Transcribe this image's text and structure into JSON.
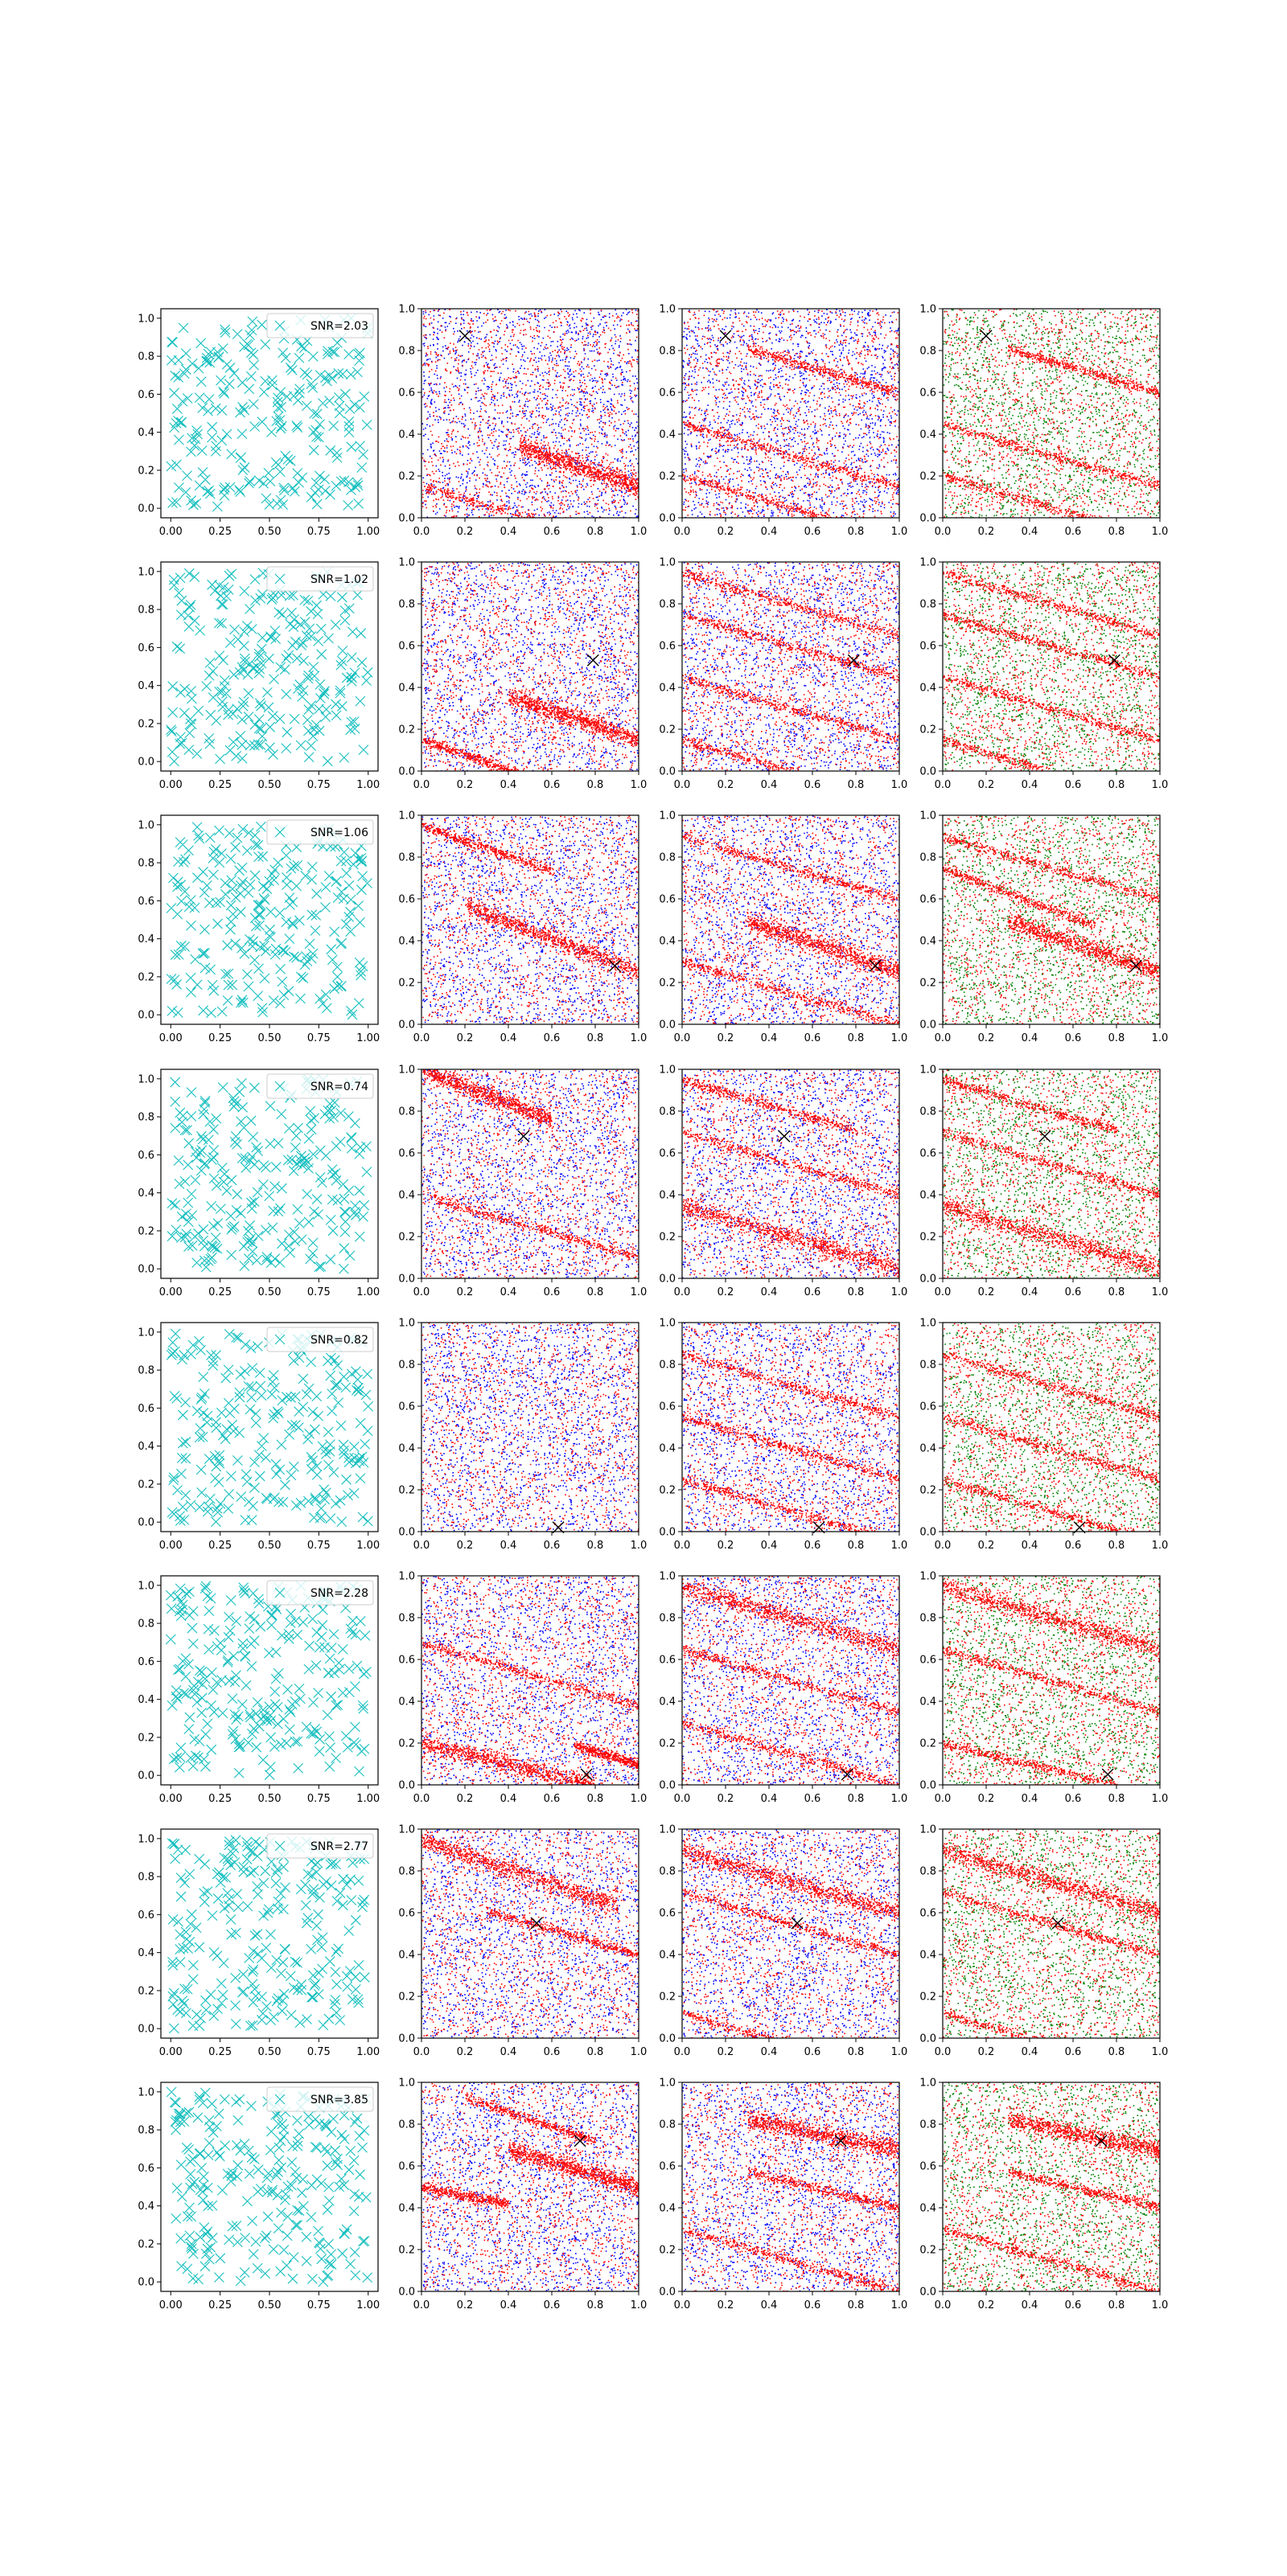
{
  "figure": {
    "grid": {
      "rows": 8,
      "cols": 4
    },
    "colors": {
      "marker": "#17bfbf",
      "blue": "#0000ff",
      "red": "#ff0000",
      "green": "#008000",
      "cross": "#000000",
      "axis": "#000000",
      "background": "#ffffff"
    },
    "icons": {
      "cross": "x-marker-icon"
    }
  },
  "chart_data": [
    {
      "row": 1,
      "panel": 1,
      "type": "scatter",
      "legend": "SNR=2.03",
      "marker": "x",
      "color": "#17bfbf",
      "n_points": 250,
      "xlim": [
        -0.05,
        1.05
      ],
      "ylim": [
        -0.05,
        1.05
      ],
      "xticks": [
        "0.00",
        "0.25",
        "0.50",
        "0.75",
        "1.00"
      ],
      "yticks": [
        "0.0",
        "0.2",
        "0.4",
        "0.6",
        "0.8",
        "1.0"
      ]
    },
    {
      "row": 1,
      "panel": 2,
      "type": "scatter",
      "colors": [
        "blue",
        "red"
      ],
      "cross": [
        0.2,
        0.87
      ],
      "bands": [
        {
          "slope": -0.35,
          "intercept": 0.5,
          "x0": 0.45,
          "x1": 1.0,
          "thick": true
        },
        {
          "slope": -0.3,
          "intercept": 0.15,
          "x0": 0.0,
          "x1": 1.0
        }
      ],
      "xlim": [
        0.0,
        1.0
      ],
      "ylim": [
        0.0,
        1.0
      ]
    },
    {
      "row": 1,
      "panel": 3,
      "type": "scatter",
      "colors": [
        "blue",
        "red"
      ],
      "cross": [
        0.2,
        0.87
      ],
      "bands": [
        {
          "slope": -0.3,
          "intercept": 0.45,
          "x0": 0.0,
          "x1": 1.0
        },
        {
          "slope": -0.3,
          "intercept": 0.2,
          "x0": 0.0,
          "x1": 1.0
        },
        {
          "slope": -0.3,
          "intercept": 0.9,
          "x0": 0.3,
          "x1": 1.0
        }
      ],
      "xlim": [
        0.0,
        1.0
      ],
      "ylim": [
        0.0,
        1.0
      ]
    },
    {
      "row": 1,
      "panel": 4,
      "type": "scatter",
      "colors": [
        "green",
        "red"
      ],
      "cross": [
        0.2,
        0.87
      ],
      "bands": [
        {
          "slope": -0.3,
          "intercept": 0.45,
          "x0": 0.0,
          "x1": 1.0
        },
        {
          "slope": -0.3,
          "intercept": 0.2,
          "x0": 0.0,
          "x1": 1.0
        },
        {
          "slope": -0.3,
          "intercept": 0.9,
          "x0": 0.3,
          "x1": 1.0
        }
      ],
      "xlim": [
        0.0,
        1.0
      ],
      "ylim": [
        0.0,
        1.0
      ]
    },
    {
      "row": 2,
      "panel": 1,
      "type": "scatter",
      "legend": "SNR=1.02",
      "marker": "x",
      "color": "#17bfbf",
      "n_points": 250,
      "xlim": [
        -0.05,
        1.05
      ],
      "ylim": [
        -0.05,
        1.05
      ],
      "xticks": [
        "0.00",
        "0.25",
        "0.50",
        "0.75",
        "1.00"
      ],
      "yticks": [
        "0.0",
        "0.2",
        "0.4",
        "0.6",
        "0.8",
        "1.0"
      ]
    },
    {
      "row": 2,
      "panel": 2,
      "type": "scatter",
      "colors": [
        "blue",
        "red"
      ],
      "cross": [
        0.79,
        0.53
      ],
      "bands": [
        {
          "slope": -0.35,
          "intercept": 0.5,
          "x0": 0.4,
          "x1": 1.0,
          "thick": true
        },
        {
          "slope": -0.35,
          "intercept": 0.15,
          "x0": 0.0,
          "x1": 0.5
        }
      ],
      "xlim": [
        0.0,
        1.0
      ],
      "ylim": [
        0.0,
        1.0
      ]
    },
    {
      "row": 2,
      "panel": 3,
      "type": "scatter",
      "colors": [
        "blue",
        "red"
      ],
      "cross": [
        0.79,
        0.53
      ],
      "bands": [
        {
          "slope": -0.3,
          "intercept": 0.75,
          "x0": 0.0,
          "x1": 1.0
        },
        {
          "slope": -0.3,
          "intercept": 0.45,
          "x0": 0.0,
          "x1": 1.0
        },
        {
          "slope": -0.3,
          "intercept": 0.95,
          "x0": 0.0,
          "x1": 1.0
        },
        {
          "slope": -0.3,
          "intercept": 0.15,
          "x0": 0.0,
          "x1": 1.0
        }
      ],
      "xlim": [
        0.0,
        1.0
      ],
      "ylim": [
        0.0,
        1.0
      ]
    },
    {
      "row": 2,
      "panel": 4,
      "type": "scatter",
      "colors": [
        "green",
        "red"
      ],
      "cross": [
        0.79,
        0.53
      ],
      "bands": [
        {
          "slope": -0.3,
          "intercept": 0.75,
          "x0": 0.0,
          "x1": 1.0
        },
        {
          "slope": -0.3,
          "intercept": 0.45,
          "x0": 0.0,
          "x1": 1.0
        },
        {
          "slope": -0.3,
          "intercept": 0.95,
          "x0": 0.0,
          "x1": 1.0
        },
        {
          "slope": -0.3,
          "intercept": 0.15,
          "x0": 0.0,
          "x1": 1.0
        }
      ],
      "xlim": [
        0.0,
        1.0
      ],
      "ylim": [
        0.0,
        1.0
      ]
    },
    {
      "row": 3,
      "panel": 1,
      "type": "scatter",
      "legend": "SNR=1.06",
      "marker": "x",
      "color": "#17bfbf",
      "n_points": 250,
      "xlim": [
        -0.05,
        1.05
      ],
      "ylim": [
        -0.05,
        1.05
      ],
      "xticks": [
        "0.00",
        "0.25",
        "0.50",
        "0.75",
        "1.00"
      ],
      "yticks": [
        "0.0",
        "0.2",
        "0.4",
        "0.6",
        "0.8",
        "1.0"
      ]
    },
    {
      "row": 3,
      "panel": 2,
      "type": "scatter",
      "colors": [
        "blue",
        "red"
      ],
      "cross": [
        0.89,
        0.28
      ],
      "bands": [
        {
          "slope": -0.4,
          "intercept": 0.65,
          "x0": 0.2,
          "x1": 1.0,
          "thick": true
        },
        {
          "slope": -0.35,
          "intercept": 0.95,
          "x0": 0.0,
          "x1": 0.6
        }
      ],
      "xlim": [
        0.0,
        1.0
      ],
      "ylim": [
        0.0,
        1.0
      ]
    },
    {
      "row": 3,
      "panel": 3,
      "type": "scatter",
      "colors": [
        "blue",
        "red"
      ],
      "cross": [
        0.89,
        0.28
      ],
      "bands": [
        {
          "slope": -0.35,
          "intercept": 0.6,
          "x0": 0.3,
          "x1": 1.0,
          "thick": true
        },
        {
          "slope": -0.3,
          "intercept": 0.9,
          "x0": 0.0,
          "x1": 1.0
        },
        {
          "slope": -0.3,
          "intercept": 0.3,
          "x0": 0.0,
          "x1": 1.0
        }
      ],
      "xlim": [
        0.0,
        1.0
      ],
      "ylim": [
        0.0,
        1.0
      ]
    },
    {
      "row": 3,
      "panel": 4,
      "type": "scatter",
      "colors": [
        "green",
        "red"
      ],
      "cross": [
        0.89,
        0.28
      ],
      "bands": [
        {
          "slope": -0.35,
          "intercept": 0.6,
          "x0": 0.3,
          "x1": 1.0,
          "thick": true
        },
        {
          "slope": -0.3,
          "intercept": 0.9,
          "x0": 0.0,
          "x1": 1.0
        },
        {
          "slope": -0.4,
          "intercept": 0.75,
          "x0": 0.0,
          "x1": 0.7
        }
      ],
      "xlim": [
        0.0,
        1.0
      ],
      "ylim": [
        0.0,
        1.0
      ]
    },
    {
      "row": 4,
      "panel": 1,
      "type": "scatter",
      "legend": "SNR=0.74",
      "marker": "x",
      "color": "#17bfbf",
      "n_points": 250,
      "xlim": [
        -0.05,
        1.05
      ],
      "ylim": [
        -0.05,
        1.05
      ],
      "xticks": [
        "0.00",
        "0.25",
        "0.50",
        "0.75",
        "1.00"
      ],
      "yticks": [
        "0.0",
        "0.2",
        "0.4",
        "0.6",
        "0.8",
        "1.0"
      ]
    },
    {
      "row": 4,
      "panel": 2,
      "type": "scatter",
      "colors": [
        "blue",
        "red"
      ],
      "cross": [
        0.47,
        0.68
      ],
      "bands": [
        {
          "slope": -0.4,
          "intercept": 1.0,
          "x0": 0.0,
          "x1": 0.6,
          "thick": true
        },
        {
          "slope": -0.3,
          "intercept": 0.4,
          "x0": 0.0,
          "x1": 1.0
        }
      ],
      "xlim": [
        0.0,
        1.0
      ],
      "ylim": [
        0.0,
        1.0
      ]
    },
    {
      "row": 4,
      "panel": 3,
      "type": "scatter",
      "colors": [
        "blue",
        "red"
      ],
      "cross": [
        0.47,
        0.68
      ],
      "bands": [
        {
          "slope": -0.3,
          "intercept": 0.35,
          "x0": 0.0,
          "x1": 1.0,
          "thick": true
        },
        {
          "slope": -0.3,
          "intercept": 0.95,
          "x0": 0.0,
          "x1": 0.8
        },
        {
          "slope": -0.3,
          "intercept": 0.7,
          "x0": 0.0,
          "x1": 1.0
        }
      ],
      "xlim": [
        0.0,
        1.0
      ],
      "ylim": [
        0.0,
        1.0
      ]
    },
    {
      "row": 4,
      "panel": 4,
      "type": "scatter",
      "colors": [
        "green",
        "red"
      ],
      "cross": [
        0.47,
        0.68
      ],
      "bands": [
        {
          "slope": -0.3,
          "intercept": 0.35,
          "x0": 0.0,
          "x1": 1.0,
          "thick": true
        },
        {
          "slope": -0.3,
          "intercept": 0.95,
          "x0": 0.0,
          "x1": 0.8
        },
        {
          "slope": -0.3,
          "intercept": 0.7,
          "x0": 0.0,
          "x1": 1.0
        }
      ],
      "xlim": [
        0.0,
        1.0
      ],
      "ylim": [
        0.0,
        1.0
      ]
    },
    {
      "row": 5,
      "panel": 1,
      "type": "scatter",
      "legend": "SNR=0.82",
      "marker": "x",
      "color": "#17bfbf",
      "n_points": 250,
      "xlim": [
        -0.05,
        1.05
      ],
      "ylim": [
        -0.05,
        1.05
      ],
      "xticks": [
        "0.00",
        "0.25",
        "0.50",
        "0.75",
        "1.00"
      ],
      "yticks": [
        "0.0",
        "0.2",
        "0.4",
        "0.6",
        "0.8",
        "1.0"
      ]
    },
    {
      "row": 5,
      "panel": 2,
      "type": "scatter",
      "colors": [
        "blue",
        "red"
      ],
      "cross": [
        0.63,
        0.02
      ],
      "bands": [],
      "xlim": [
        0.0,
        1.0
      ],
      "ylim": [
        0.0,
        1.0
      ]
    },
    {
      "row": 5,
      "panel": 3,
      "type": "scatter",
      "colors": [
        "blue",
        "red"
      ],
      "cross": [
        0.63,
        0.02
      ],
      "bands": [
        {
          "slope": -0.3,
          "intercept": 0.85,
          "x0": 0.0,
          "x1": 1.0
        },
        {
          "slope": -0.3,
          "intercept": 0.55,
          "x0": 0.0,
          "x1": 1.0
        },
        {
          "slope": -0.3,
          "intercept": 0.25,
          "x0": 0.0,
          "x1": 1.0
        }
      ],
      "xlim": [
        0.0,
        1.0
      ],
      "ylim": [
        0.0,
        1.0
      ]
    },
    {
      "row": 5,
      "panel": 4,
      "type": "scatter",
      "colors": [
        "green",
        "red"
      ],
      "cross": [
        0.63,
        0.02
      ],
      "bands": [
        {
          "slope": -0.3,
          "intercept": 0.85,
          "x0": 0.0,
          "x1": 1.0
        },
        {
          "slope": -0.3,
          "intercept": 0.55,
          "x0": 0.0,
          "x1": 1.0
        },
        {
          "slope": -0.3,
          "intercept": 0.25,
          "x0": 0.0,
          "x1": 1.0
        }
      ],
      "xlim": [
        0.0,
        1.0
      ],
      "ylim": [
        0.0,
        1.0
      ]
    },
    {
      "row": 6,
      "panel": 1,
      "type": "scatter",
      "legend": "SNR=2.28",
      "marker": "x",
      "color": "#17bfbf",
      "n_points": 250,
      "xlim": [
        -0.05,
        1.05
      ],
      "ylim": [
        -0.05,
        1.05
      ],
      "xticks": [
        "0.00",
        "0.25",
        "0.50",
        "0.75",
        "1.00"
      ],
      "yticks": [
        "0.0",
        "0.2",
        "0.4",
        "0.6",
        "0.8",
        "1.0"
      ]
    },
    {
      "row": 6,
      "panel": 2,
      "type": "scatter",
      "colors": [
        "blue",
        "red"
      ],
      "cross": [
        0.76,
        0.05
      ],
      "bands": [
        {
          "slope": -0.25,
          "intercept": 0.2,
          "x0": 0.0,
          "x1": 0.8,
          "thick": true
        },
        {
          "slope": -0.3,
          "intercept": 0.68,
          "x0": 0.0,
          "x1": 1.0
        },
        {
          "slope": -0.3,
          "intercept": 0.4,
          "x0": 0.7,
          "x1": 1.0
        }
      ],
      "xlim": [
        0.0,
        1.0
      ],
      "ylim": [
        0.0,
        1.0
      ]
    },
    {
      "row": 6,
      "panel": 3,
      "type": "scatter",
      "colors": [
        "blue",
        "red"
      ],
      "cross": [
        0.76,
        0.05
      ],
      "bands": [
        {
          "slope": -0.3,
          "intercept": 0.95,
          "x0": 0.0,
          "x1": 1.0,
          "thick": true
        },
        {
          "slope": -0.3,
          "intercept": 0.65,
          "x0": 0.0,
          "x1": 1.0
        },
        {
          "slope": -0.3,
          "intercept": 0.3,
          "x0": 0.0,
          "x1": 1.0
        }
      ],
      "xlim": [
        0.0,
        1.0
      ],
      "ylim": [
        0.0,
        1.0
      ]
    },
    {
      "row": 6,
      "panel": 4,
      "type": "scatter",
      "colors": [
        "green",
        "red"
      ],
      "cross": [
        0.76,
        0.05
      ],
      "bands": [
        {
          "slope": -0.3,
          "intercept": 0.95,
          "x0": 0.0,
          "x1": 1.0,
          "thick": true
        },
        {
          "slope": -0.3,
          "intercept": 0.65,
          "x0": 0.0,
          "x1": 1.0
        },
        {
          "slope": -0.25,
          "intercept": 0.2,
          "x0": 0.0,
          "x1": 0.8
        }
      ],
      "xlim": [
        0.0,
        1.0
      ],
      "ylim": [
        0.0,
        1.0
      ]
    },
    {
      "row": 7,
      "panel": 1,
      "type": "scatter",
      "legend": "SNR=2.77",
      "marker": "x",
      "color": "#17bfbf",
      "n_points": 250,
      "xlim": [
        -0.05,
        1.05
      ],
      "ylim": [
        -0.05,
        1.05
      ],
      "xticks": [
        "0.00",
        "0.25",
        "0.50",
        "0.75",
        "1.00"
      ],
      "yticks": [
        "0.0",
        "0.2",
        "0.4",
        "0.6",
        "0.8",
        "1.0"
      ]
    },
    {
      "row": 7,
      "panel": 2,
      "type": "scatter",
      "colors": [
        "blue",
        "red"
      ],
      "cross": [
        0.53,
        0.55
      ],
      "bands": [
        {
          "slope": -0.35,
          "intercept": 0.95,
          "x0": 0.0,
          "x1": 0.9,
          "thick": true
        },
        {
          "slope": -0.3,
          "intercept": 0.7,
          "x0": 0.3,
          "x1": 1.0
        }
      ],
      "xlim": [
        0.0,
        1.0
      ],
      "ylim": [
        0.0,
        1.0
      ]
    },
    {
      "row": 7,
      "panel": 3,
      "type": "scatter",
      "colors": [
        "blue",
        "red"
      ],
      "cross": [
        0.53,
        0.55
      ],
      "bands": [
        {
          "slope": -0.3,
          "intercept": 0.9,
          "x0": 0.0,
          "x1": 1.0,
          "thick": true
        },
        {
          "slope": -0.3,
          "intercept": 0.7,
          "x0": 0.0,
          "x1": 1.0
        },
        {
          "slope": -0.3,
          "intercept": 0.12,
          "x0": 0.0,
          "x1": 1.0
        }
      ],
      "xlim": [
        0.0,
        1.0
      ],
      "ylim": [
        0.0,
        1.0
      ]
    },
    {
      "row": 7,
      "panel": 4,
      "type": "scatter",
      "colors": [
        "green",
        "red"
      ],
      "cross": [
        0.53,
        0.55
      ],
      "bands": [
        {
          "slope": -0.3,
          "intercept": 0.9,
          "x0": 0.0,
          "x1": 1.0,
          "thick": true
        },
        {
          "slope": -0.3,
          "intercept": 0.7,
          "x0": 0.0,
          "x1": 1.0
        },
        {
          "slope": -0.3,
          "intercept": 0.12,
          "x0": 0.0,
          "x1": 1.0
        }
      ],
      "xlim": [
        0.0,
        1.0
      ],
      "ylim": [
        0.0,
        1.0
      ]
    },
    {
      "row": 8,
      "panel": 1,
      "type": "scatter",
      "legend": "SNR=3.85",
      "marker": "x",
      "color": "#17bfbf",
      "n_points": 250,
      "xlim": [
        -0.05,
        1.05
      ],
      "ylim": [
        -0.05,
        1.05
      ],
      "xticks": [
        "0.00",
        "0.25",
        "0.50",
        "0.75",
        "1.00"
      ],
      "yticks": [
        "0.0",
        "0.2",
        "0.4",
        "0.6",
        "0.8",
        "1.0"
      ]
    },
    {
      "row": 8,
      "panel": 2,
      "type": "scatter",
      "colors": [
        "blue",
        "red"
      ],
      "cross": [
        0.73,
        0.72
      ],
      "bands": [
        {
          "slope": -0.3,
          "intercept": 0.8,
          "x0": 0.4,
          "x1": 1.0,
          "thick": true
        },
        {
          "slope": -0.35,
          "intercept": 1.0,
          "x0": 0.2,
          "x1": 0.8
        },
        {
          "slope": -0.2,
          "intercept": 0.5,
          "x0": 0.0,
          "x1": 0.4
        }
      ],
      "xlim": [
        0.0,
        1.0
      ],
      "ylim": [
        0.0,
        1.0
      ]
    },
    {
      "row": 8,
      "panel": 3,
      "type": "scatter",
      "colors": [
        "blue",
        "red"
      ],
      "cross": [
        0.73,
        0.72
      ],
      "bands": [
        {
          "slope": -0.2,
          "intercept": 0.88,
          "x0": 0.3,
          "x1": 1.0,
          "thick": true
        },
        {
          "slope": -0.25,
          "intercept": 0.65,
          "x0": 0.3,
          "x1": 1.0
        },
        {
          "slope": -0.3,
          "intercept": 0.3,
          "x0": 0.0,
          "x1": 1.0
        }
      ],
      "xlim": [
        0.0,
        1.0
      ],
      "ylim": [
        0.0,
        1.0
      ]
    },
    {
      "row": 8,
      "panel": 4,
      "type": "scatter",
      "colors": [
        "green",
        "red"
      ],
      "cross": [
        0.73,
        0.72
      ],
      "bands": [
        {
          "slope": -0.2,
          "intercept": 0.88,
          "x0": 0.3,
          "x1": 1.0,
          "thick": true
        },
        {
          "slope": -0.25,
          "intercept": 0.65,
          "x0": 0.3,
          "x1": 1.0
        },
        {
          "slope": -0.3,
          "intercept": 0.3,
          "x0": 0.0,
          "x1": 1.0
        }
      ],
      "xlim": [
        0.0,
        1.0
      ],
      "ylim": [
        0.0,
        1.0
      ]
    }
  ]
}
